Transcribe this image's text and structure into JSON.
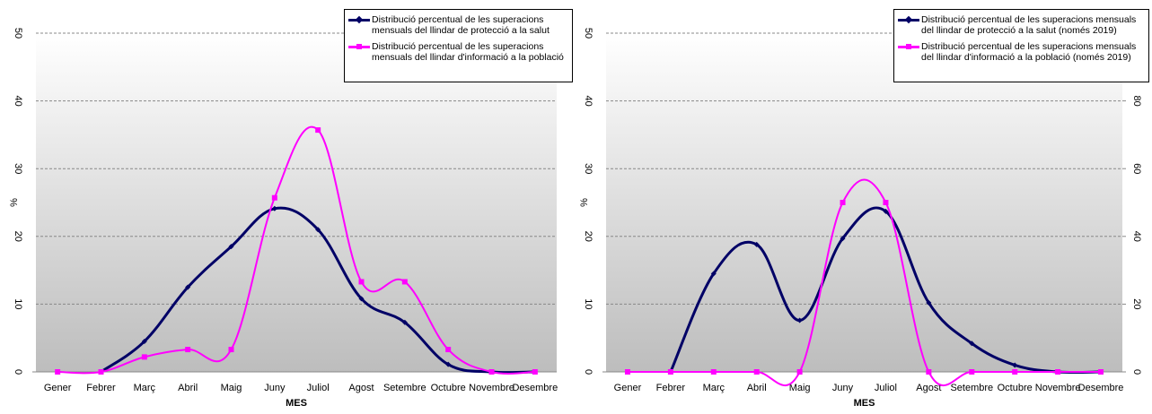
{
  "chart_data": [
    {
      "type": "line",
      "ylabel": "%",
      "xlabel": "MES",
      "categories": [
        "Gener",
        "Febrer",
        "Març",
        "Abril",
        "Maig",
        "Juny",
        "Juliol",
        "Agost",
        "Setembre",
        "Octubre",
        "Novembre",
        "Desembre"
      ],
      "ylim": [
        0,
        50
      ],
      "yticks": [
        0,
        10,
        20,
        30,
        40,
        50
      ],
      "grid": true,
      "series": [
        {
          "name": "Distribució percentual de les superacions mensuals del llindar de protecció a la salut",
          "color": "#000066",
          "values": [
            null,
            0,
            4.5,
            12.5,
            18.5,
            24.1,
            21.0,
            10.8,
            7.3,
            1.1,
            0,
            0
          ]
        },
        {
          "name": "Distribució percentual de les superacions mensuals del llindar d'informació a la població",
          "color": "#ff00ff",
          "values": [
            0,
            0,
            2.2,
            3.3,
            3.3,
            25.7,
            35.7,
            13.3,
            13.3,
            3.3,
            0,
            0
          ]
        }
      ]
    },
    {
      "type": "line",
      "ylabel": "%",
      "xlabel": "MES",
      "categories": [
        "Gener",
        "Febrer",
        "Març",
        "Abril",
        "Maig",
        "Juny",
        "Juliol",
        "Agost",
        "Setembre",
        "Octubre",
        "Novembre",
        "Desembre"
      ],
      "ylim": [
        0,
        50
      ],
      "yticks": [
        0,
        10,
        20,
        30,
        40,
        50
      ],
      "y2lim": [
        0,
        100
      ],
      "y2ticks": [
        0,
        20,
        40,
        60,
        80
      ],
      "grid": true,
      "series": [
        {
          "name": "Distribució percentual de les superacions mensuals del llindar de protecció a la salut (només 2019)",
          "color": "#000066",
          "values": [
            null,
            0,
            14.5,
            18.8,
            7.6,
            19.7,
            23.7,
            10.2,
            4.2,
            1.0,
            0,
            0
          ]
        },
        {
          "name": "Distribució percentual de les superacions mensuals del llindar d'informació a la població (només 2019)",
          "color": "#ff00ff",
          "axis": "y2",
          "values": [
            0,
            0,
            0,
            0,
            0,
            50,
            50,
            0,
            0,
            0,
            0,
            0
          ]
        }
      ]
    }
  ]
}
